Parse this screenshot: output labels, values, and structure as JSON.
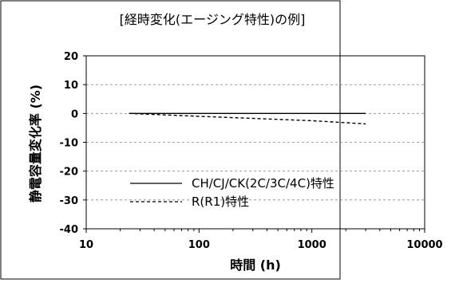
{
  "chart_data": {
    "type": "line",
    "title": "[経時変化(エージング特性)の例]",
    "xlabel": "時間 (h)",
    "ylabel": "静電容量変化率 (%)",
    "x_scale": "log",
    "xlim": [
      10,
      10000
    ],
    "ylim": [
      -40,
      20
    ],
    "x_ticks": [
      "10",
      "100",
      "1000",
      "10000"
    ],
    "y_ticks": [
      "20",
      "10",
      "0",
      "-10",
      "-20",
      "-30",
      "-40"
    ],
    "grid": "horizontal dashed",
    "legend_position": "bottom-right",
    "series": [
      {
        "name": "CH/CJ/CK(2C/3C/4C)特性",
        "style": "solid",
        "color": "#000000",
        "x": [
          24,
          100,
          1000,
          3000
        ],
        "y": [
          0,
          0,
          0,
          0
        ]
      },
      {
        "name": "R(R1)特性",
        "style": "dashed",
        "color": "#000000",
        "x": [
          24,
          100,
          1000,
          3000
        ],
        "y": [
          0,
          -1.0,
          -2.5,
          -3.6
        ]
      }
    ]
  }
}
